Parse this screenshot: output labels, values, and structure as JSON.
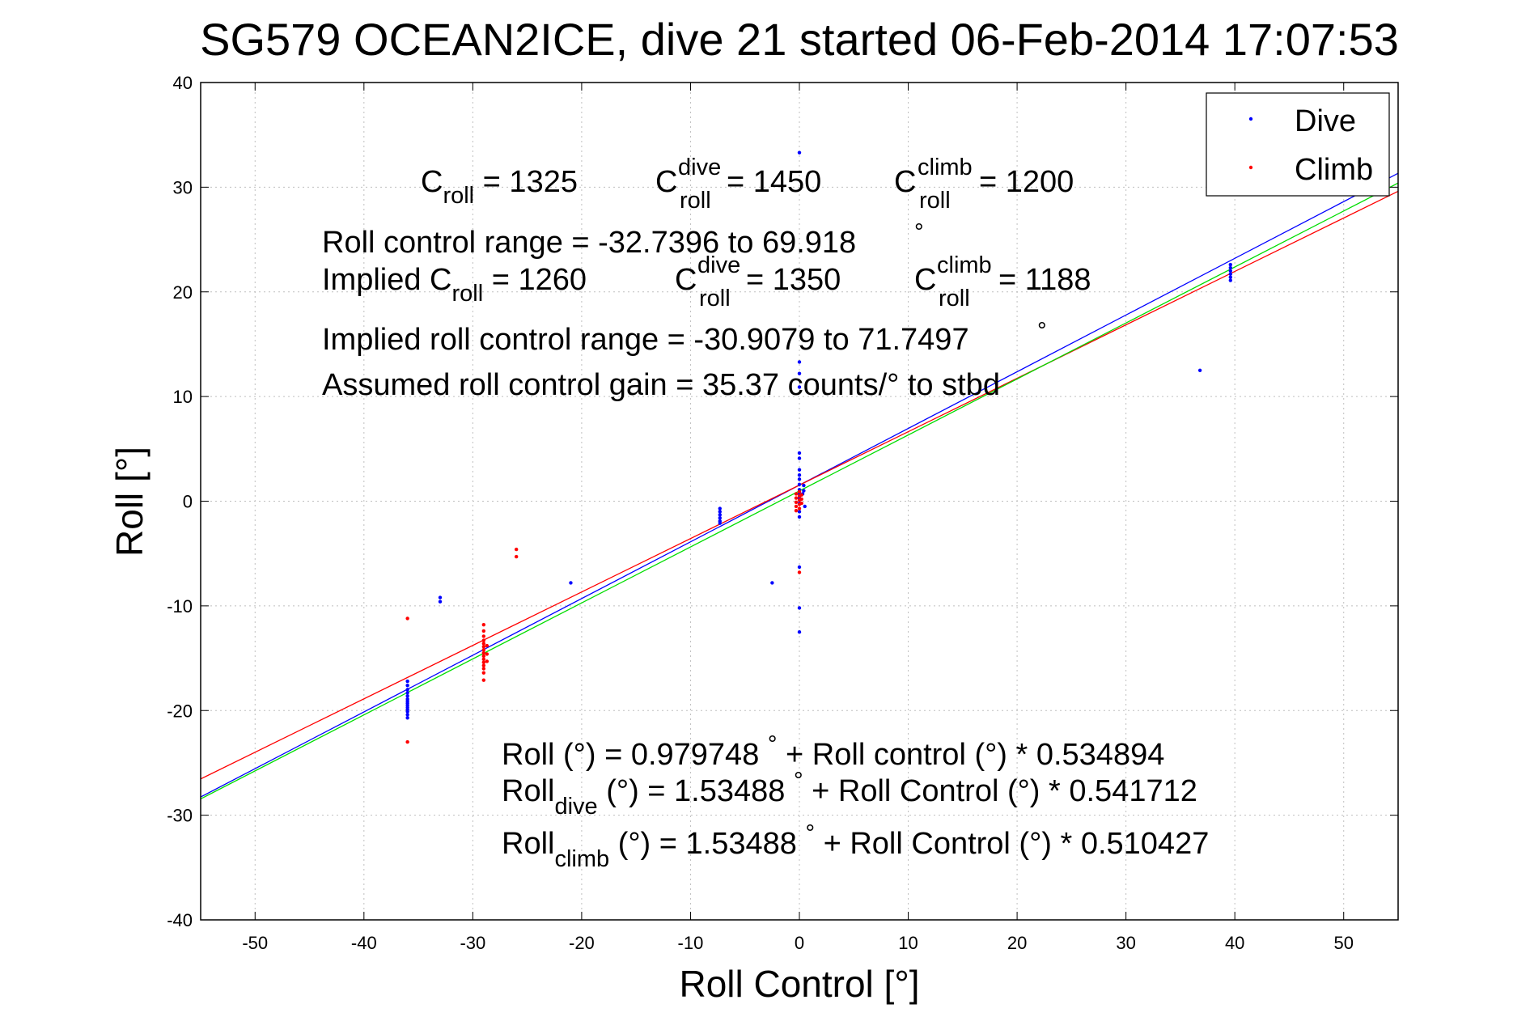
{
  "chart_data": {
    "type": "scatter",
    "title": "SG579 OCEAN2ICE, dive 21 started 06-Feb-2014 17:07:53",
    "xlabel": "Roll Control [°]",
    "ylabel": "Roll [°]",
    "xlim": [
      -55,
      55
    ],
    "ylim": [
      -40,
      40
    ],
    "xticks": [
      -50,
      -40,
      -30,
      -20,
      -10,
      0,
      10,
      20,
      30,
      40,
      50
    ],
    "yticks": [
      -40,
      -30,
      -20,
      -10,
      0,
      10,
      20,
      30,
      40
    ],
    "grid": true,
    "legend": {
      "placement": "top-right",
      "entries": [
        "Dive",
        "Climb"
      ]
    },
    "colors": {
      "dive": "#0000ff",
      "climb": "#ff0000",
      "combined": "#00dd00"
    },
    "series": [
      {
        "name": "Dive",
        "points": [
          [
            -36,
            -17.2
          ],
          [
            -36,
            -17.6
          ],
          [
            -36,
            -18.0
          ],
          [
            -36,
            -18.3
          ],
          [
            -36,
            -18.6
          ],
          [
            -36,
            -18.9
          ],
          [
            -36,
            -19.1
          ],
          [
            -36,
            -19.3
          ],
          [
            -36,
            -19.5
          ],
          [
            -36,
            -19.7
          ],
          [
            -36,
            -19.9
          ],
          [
            -36,
            -20.1
          ],
          [
            -36,
            -20.4
          ],
          [
            -36,
            -20.7
          ],
          [
            -33,
            -9.2
          ],
          [
            -33,
            -9.6
          ],
          [
            -21,
            -7.8
          ],
          [
            -7.3,
            -0.7
          ],
          [
            -7.3,
            -1.0
          ],
          [
            -7.3,
            -1.3
          ],
          [
            -7.3,
            -1.6
          ],
          [
            -7.3,
            -1.9
          ],
          [
            -7.3,
            -2.1
          ],
          [
            -2.5,
            -7.8
          ],
          [
            0,
            33.3
          ],
          [
            0,
            13.3
          ],
          [
            0,
            12.2
          ],
          [
            0,
            10.9
          ],
          [
            0,
            4.6
          ],
          [
            0,
            4.1
          ],
          [
            0,
            3.0
          ],
          [
            0,
            2.5
          ],
          [
            0,
            2.1
          ],
          [
            0,
            1.6
          ],
          [
            0,
            1.1
          ],
          [
            0,
            0.7
          ],
          [
            0,
            0.3
          ],
          [
            0,
            -0.2
          ],
          [
            0,
            -1.0
          ],
          [
            0,
            -1.5
          ],
          [
            0,
            -6.3
          ],
          [
            0,
            -10.2
          ],
          [
            0,
            -12.5
          ],
          [
            0.4,
            1.5
          ],
          [
            0.4,
            1.0
          ],
          [
            0.3,
            0.7
          ],
          [
            0.5,
            -0.5
          ],
          [
            39.6,
            21.1
          ],
          [
            39.6,
            21.4
          ],
          [
            39.6,
            21.7
          ],
          [
            39.6,
            22.0
          ],
          [
            39.6,
            22.3
          ],
          [
            39.6,
            22.6
          ],
          [
            36.8,
            12.5
          ]
        ]
      },
      {
        "name": "Climb",
        "points": [
          [
            -36,
            -11.2
          ],
          [
            -36,
            -23.0
          ],
          [
            -29,
            -11.8
          ],
          [
            -29,
            -12.4
          ],
          [
            -29,
            -12.9
          ],
          [
            -29,
            -13.3
          ],
          [
            -29,
            -13.6
          ],
          [
            -29,
            -13.9
          ],
          [
            -29,
            -14.2
          ],
          [
            -29,
            -14.5
          ],
          [
            -29,
            -14.8
          ],
          [
            -29,
            -15.1
          ],
          [
            -29,
            -15.4
          ],
          [
            -29,
            -15.7
          ],
          [
            -29,
            -16.0
          ],
          [
            -29,
            -16.4
          ],
          [
            -29,
            -17.1
          ],
          [
            -28.7,
            -13.8
          ],
          [
            -28.7,
            -14.6
          ],
          [
            -28.7,
            -15.3
          ],
          [
            -26,
            -4.6
          ],
          [
            -26,
            -5.3
          ],
          [
            -0.3,
            0.7
          ],
          [
            -0.3,
            0.3
          ],
          [
            -0.3,
            -0.1
          ],
          [
            -0.3,
            -0.5
          ],
          [
            -0.3,
            -0.9
          ],
          [
            0,
            0.9
          ],
          [
            0,
            0.5
          ],
          [
            0,
            0.1
          ],
          [
            0,
            -0.3
          ],
          [
            0,
            -0.7
          ],
          [
            0,
            -6.8
          ],
          [
            0.2,
            0.6
          ],
          [
            0.2,
            0.2
          ],
          [
            0.2,
            -0.2
          ]
        ]
      }
    ],
    "fit_lines": [
      {
        "name": "dive-fit",
        "intercept": 1.53488,
        "slope": 0.541712
      },
      {
        "name": "climb-fit",
        "intercept": 1.53488,
        "slope": 0.510427
      },
      {
        "name": "combined-fit",
        "intercept": 0.979748,
        "slope": 0.534894
      }
    ],
    "annotations": {
      "c_roll": {
        "base": "C",
        "sub": "roll",
        "value": " = 1325"
      },
      "c_roll_dive": {
        "base": "C",
        "sup": "dive",
        "sub": "roll",
        "value": " = 1450"
      },
      "c_roll_climb": {
        "base": "C",
        "sup": "climb",
        "sub": "roll",
        "value": " = 1200"
      },
      "roll_control_range": "Roll control range = -32.7396 to 69.918",
      "implied_c_roll": {
        "base": "Implied C",
        "sub": "roll",
        "value": " = 1260"
      },
      "implied_c_roll_dive": {
        "base": "C",
        "sup": "dive",
        "sub": "roll",
        "value": " = 1350"
      },
      "implied_c_roll_climb": {
        "base": "C",
        "sup": "climb",
        "sub": "roll",
        "value": " = 1188"
      },
      "implied_range": "Implied roll control range = -30.9079 to 71.7497",
      "assumed_gain": "Assumed roll control gain = 35.37 counts/° to stbd",
      "degree_mark": "°",
      "eq_combined": {
        "lead": "Roll (°) = 0.979748 ",
        "tail": " + Roll control (°) * 0.534894"
      },
      "eq_dive": {
        "base": "Roll",
        "sub": "dive",
        "lead": " (°) = 1.53488 ",
        "tail": " + Roll Control (°) * 0.541712"
      },
      "eq_climb": {
        "base": "Roll",
        "sub": "climb",
        "lead": " (°) = 1.53488 ",
        "tail": " + Roll Control (°) * 0.510427"
      }
    }
  }
}
